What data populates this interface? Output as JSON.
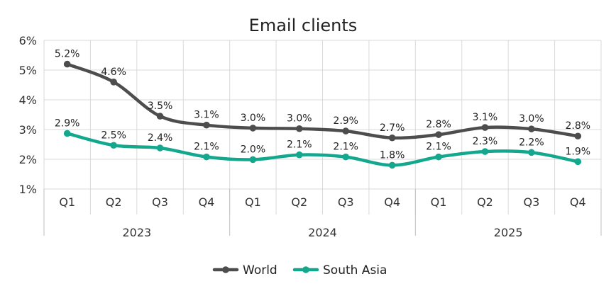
{
  "chart_data": {
    "type": "line",
    "title": "Email clients",
    "quarters": [
      "Q1",
      "Q2",
      "Q3",
      "Q4",
      "Q1",
      "Q2",
      "Q3",
      "Q4",
      "Q1",
      "Q2",
      "Q3",
      "Q4"
    ],
    "years": [
      {
        "label": "2023",
        "span": [
          0,
          3
        ]
      },
      {
        "label": "2024",
        "span": [
          4,
          7
        ]
      },
      {
        "label": "2025",
        "span": [
          8,
          11
        ]
      }
    ],
    "y_ticks": [
      "1%",
      "2%",
      "3%",
      "4%",
      "5%",
      "6%"
    ],
    "ylim": [
      1,
      6
    ],
    "grid": true,
    "legend_position": "bottom",
    "series": [
      {
        "name": "World",
        "color": "#4d4d4d",
        "values": [
          5.2,
          4.6,
          3.45,
          3.15,
          3.05,
          3.03,
          2.95,
          2.72,
          2.83,
          3.07,
          3.02,
          2.78
        ],
        "labels": [
          "5.2%",
          "4.6%",
          "3.5%",
          "3.1%",
          "3.0%",
          "3.0%",
          "2.9%",
          "2.7%",
          "2.8%",
          "3.1%",
          "3.0%",
          "2.8%"
        ]
      },
      {
        "name": "South Asia",
        "color": "#13a88e",
        "values": [
          2.87,
          2.47,
          2.38,
          2.08,
          1.99,
          2.15,
          2.08,
          1.8,
          2.08,
          2.26,
          2.23,
          1.92
        ],
        "labels": [
          "2.9%",
          "2.5%",
          "2.4%",
          "2.1%",
          "2.0%",
          "2.1%",
          "2.1%",
          "1.8%",
          "2.1%",
          "2.3%",
          "2.2%",
          "1.9%"
        ]
      }
    ]
  }
}
